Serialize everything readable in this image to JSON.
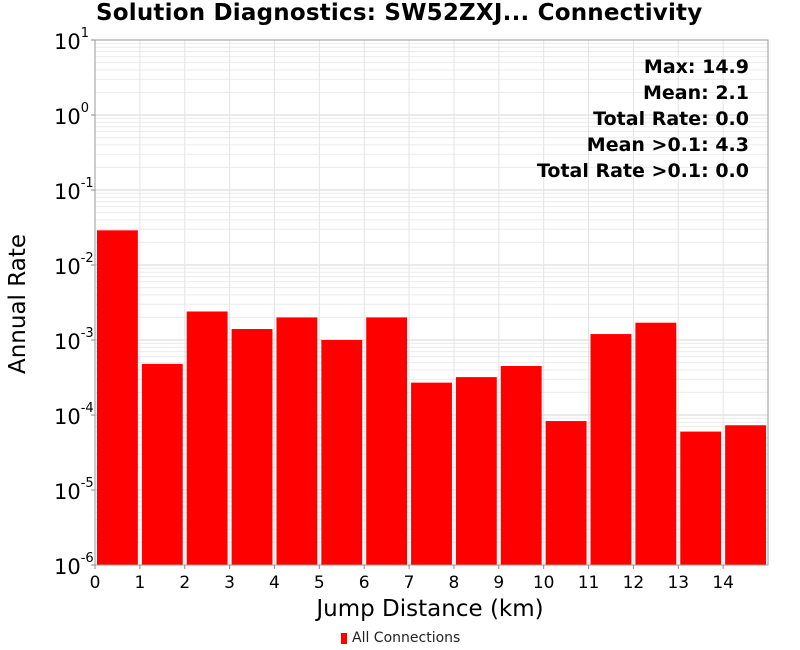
{
  "chart_data": {
    "type": "bar",
    "title": "Solution Diagnostics: SW52ZXJ... Connectivity",
    "xlabel": "Jump Distance (km)",
    "ylabel": "Annual Rate",
    "y_scale": "log",
    "ylim": [
      1e-06,
      10
    ],
    "xlim": [
      0,
      15
    ],
    "x_ticks": [
      "0",
      "1",
      "2",
      "3",
      "4",
      "5",
      "6",
      "7",
      "8",
      "9",
      "10",
      "11",
      "12",
      "13",
      "14"
    ],
    "y_ticks": [
      {
        "base": "10",
        "exp": "1"
      },
      {
        "base": "10",
        "exp": "0"
      },
      {
        "base": "10",
        "exp": "-1"
      },
      {
        "base": "10",
        "exp": "-2"
      },
      {
        "base": "10",
        "exp": "-3"
      },
      {
        "base": "10",
        "exp": "-4"
      },
      {
        "base": "10",
        "exp": "-5"
      },
      {
        "base": "10",
        "exp": "-6"
      }
    ],
    "grid": true,
    "bar_color": "#ff0000",
    "series": [
      {
        "name": "All Connections",
        "bin_starts": [
          0,
          1,
          2,
          3,
          4,
          5,
          6,
          7,
          8,
          9,
          10,
          11,
          12,
          13,
          14
        ],
        "values": [
          0.029,
          0.00048,
          0.0024,
          0.0014,
          0.002,
          0.001,
          0.002,
          0.00027,
          0.00032,
          0.00045,
          8.3e-05,
          0.0012,
          0.0017,
          6e-05,
          7.3e-05
        ]
      }
    ],
    "stats": [
      "Max: 14.9",
      "Mean: 2.1",
      "Total Rate: 0.0",
      "Mean >0.1: 4.3",
      "Total Rate >0.1: 0.0"
    ],
    "legend": {
      "label": "All Connections",
      "position": "bottom-center"
    }
  }
}
